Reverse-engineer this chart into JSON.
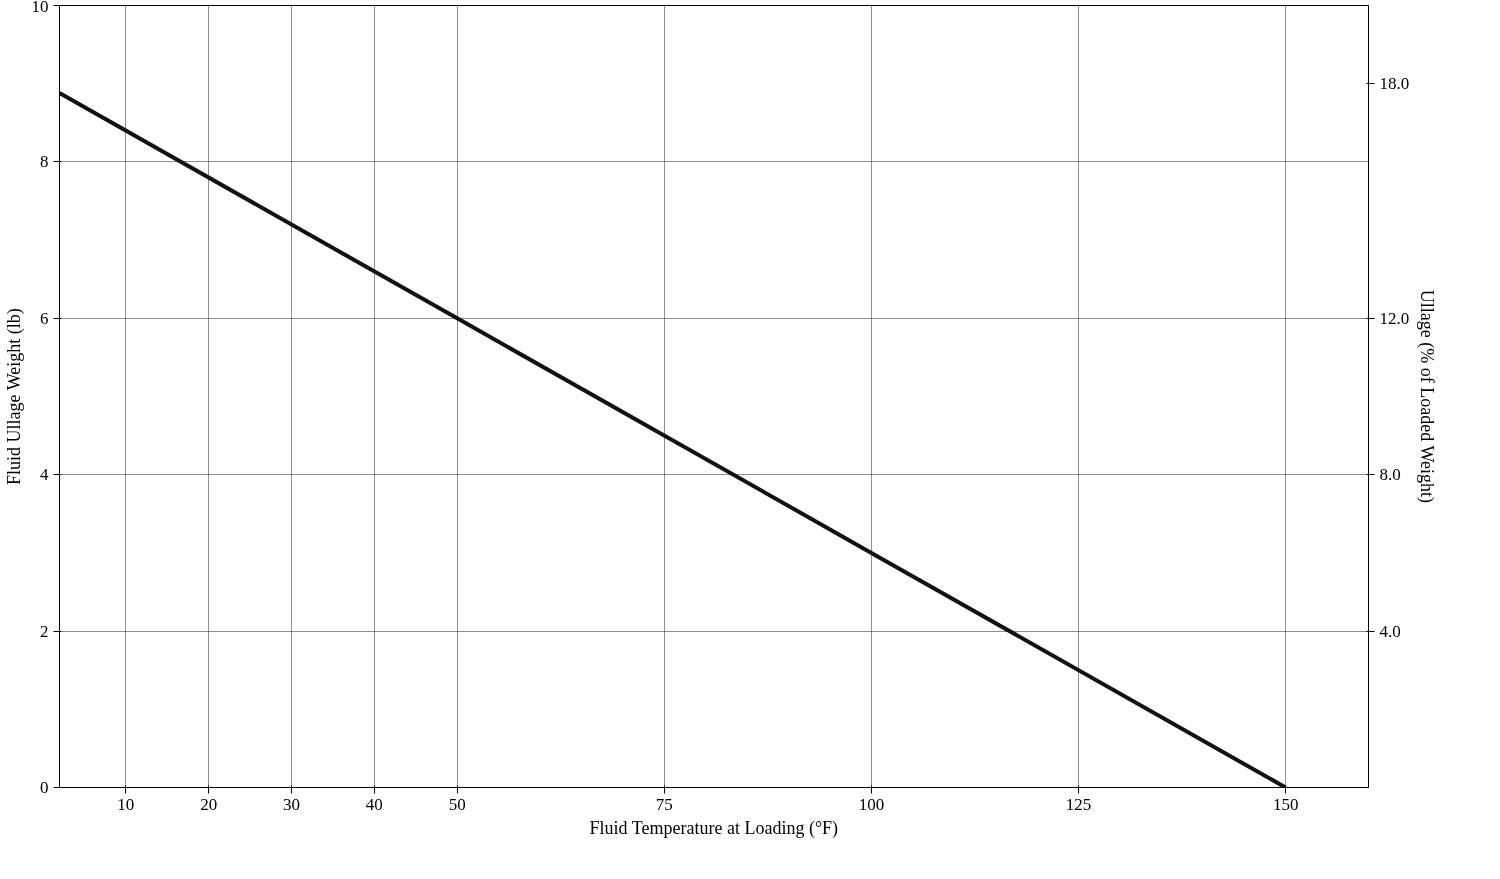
{
  "chart_data": {
    "type": "line",
    "xlabel": "Fluid Temperature at Loading (°F)",
    "ylabel": "Fluid Ullage Weight (lb)",
    "y2label": "Ullage (% of Loaded Weight)",
    "x": [
      2,
      50,
      100,
      150
    ],
    "series": [
      {
        "color": "#111111",
        "values": [
          8.88,
          6,
          3,
          0
        ]
      }
    ],
    "xlim": [
      2,
      160
    ],
    "xticks": [
      10,
      20,
      30,
      40,
      50,
      75,
      100,
      125,
      150
    ],
    "ylim": [
      0,
      10
    ],
    "yticks": [
      0,
      2,
      4,
      6,
      8,
      10
    ],
    "y2lim": [
      0,
      20
    ],
    "y2ticks": [
      {
        "value": 4,
        "label": "4.0"
      },
      {
        "value": 8,
        "label": "8.0"
      },
      {
        "value": 12,
        "label": "12.0"
      },
      {
        "value": 18,
        "label": "18.0"
      }
    ],
    "grid": true,
    "marker": "none",
    "line_style": "solid"
  }
}
